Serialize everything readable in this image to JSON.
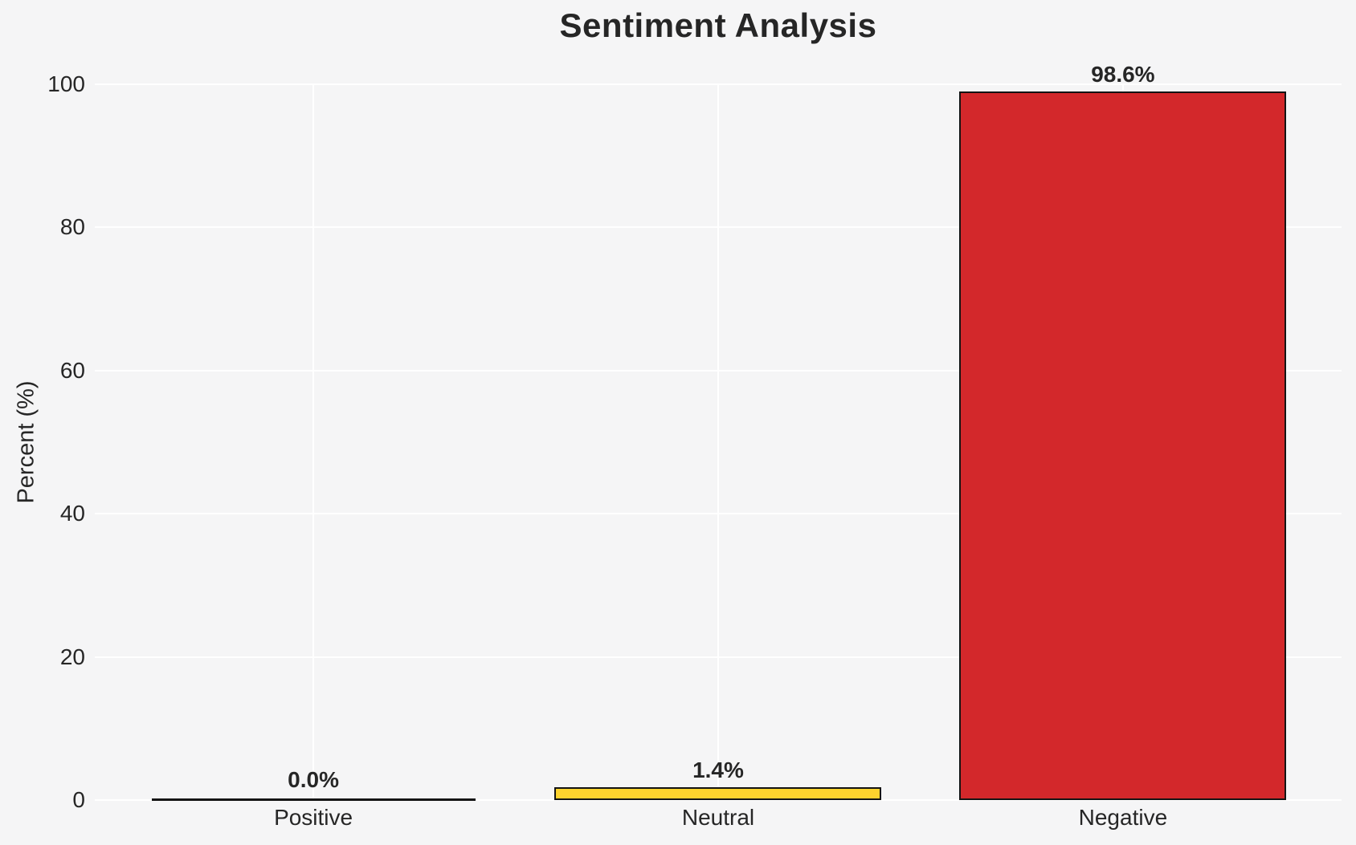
{
  "chart_data": {
    "type": "bar",
    "title": "Sentiment Analysis",
    "xlabel": "",
    "ylabel": "Percent (%)",
    "categories": [
      "Positive",
      "Neutral",
      "Negative"
    ],
    "values": [
      0.0,
      1.4,
      98.6
    ],
    "value_labels": [
      "0.0%",
      "1.4%",
      "98.6%"
    ],
    "bar_colors": [
      "#f5f5f6",
      "#fdd32e",
      "#d3282b"
    ],
    "bar_edge_color": "#141414",
    "ylim": [
      0,
      100
    ],
    "yticks": [
      0,
      20,
      40,
      60,
      80,
      100
    ],
    "grid": true,
    "grid_color": "#ffffff",
    "background_color": "#f5f5f6",
    "text_color": "#262626",
    "legend": "none"
  }
}
